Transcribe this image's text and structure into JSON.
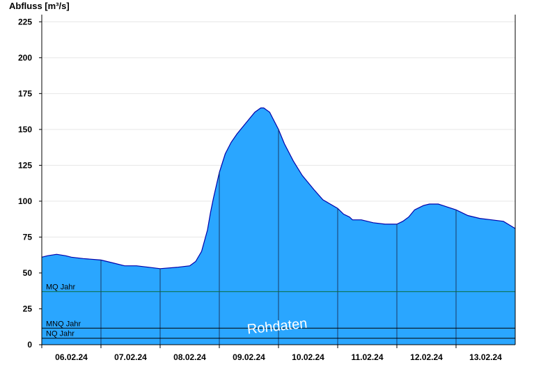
{
  "chart_data": {
    "type": "area",
    "ylabel": "Abfluss [m³/s]",
    "ylim": [
      0,
      230
    ],
    "yticks": [
      0,
      25,
      50,
      75,
      100,
      125,
      150,
      175,
      200,
      225
    ],
    "xlim": [
      0,
      8
    ],
    "x_tick_positions": [
      0.5,
      1.5,
      2.5,
      3.5,
      4.5,
      5.5,
      6.5,
      7.5
    ],
    "categories": [
      "06.02.24",
      "07.02.24",
      "08.02.24",
      "09.02.24",
      "10.02.24",
      "11.02.24",
      "12.02.24",
      "13.02.24"
    ],
    "day_boundaries": [
      1,
      2,
      3,
      4,
      5,
      6,
      7
    ],
    "grid": true,
    "fill_color": "#2aa6ff",
    "line_color": "#0000aa",
    "series": [
      {
        "x": [
          0,
          0.1,
          0.25,
          0.4,
          0.5,
          0.7,
          1.0,
          1.2,
          1.4,
          1.6,
          1.8,
          2.0,
          2.3,
          2.5,
          2.6,
          2.7,
          2.8,
          2.85,
          2.9,
          3.0,
          3.1,
          3.2,
          3.3,
          3.4,
          3.5,
          3.6,
          3.7,
          3.75,
          3.85,
          3.9,
          4.0,
          4.1,
          4.25,
          4.4,
          4.6,
          4.75,
          5.0,
          5.1,
          5.2,
          5.25,
          5.4,
          5.6,
          5.8,
          6.0,
          6.1,
          6.2,
          6.3,
          6.4,
          6.45,
          6.55,
          6.7,
          6.85,
          7.0,
          7.2,
          7.4,
          7.6,
          7.8,
          8.0
        ],
        "values": [
          61,
          62,
          63,
          62,
          61,
          60,
          59,
          57,
          55,
          55,
          54,
          53,
          54,
          55,
          58,
          65,
          80,
          92,
          102,
          120,
          133,
          141,
          147,
          152,
          157,
          162,
          165,
          165,
          162,
          158,
          150,
          140,
          128,
          118,
          108,
          101,
          95,
          91,
          89,
          87,
          87,
          85,
          84,
          84,
          86,
          89,
          94,
          96,
          97,
          98,
          98,
          96,
          94,
          90,
          88,
          87,
          86,
          81
        ]
      }
    ],
    "reference_lines": [
      {
        "label": "MQ Jahr",
        "value": 37
      },
      {
        "label": "MNQ Jahr",
        "value": 11.5
      },
      {
        "label": "NQ Jahr",
        "value": 4.5
      }
    ],
    "watermark": "Rohdaten"
  }
}
